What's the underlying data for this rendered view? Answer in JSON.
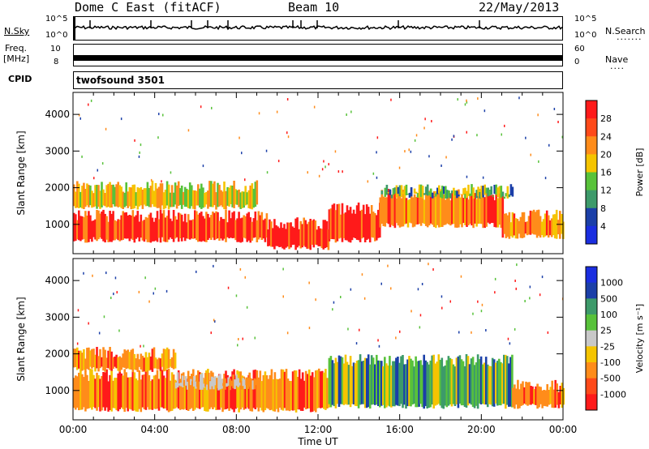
{
  "header": {
    "station": "Dome C East (fitACF)",
    "beam": "Beam 10",
    "date": "22/May/2013"
  },
  "strip_labels": {
    "nsky": "N.Sky",
    "nsky_hi": "10^5",
    "nsky_lo": "10^0",
    "nsearch": "N.Search",
    "nsearch_hi": "10^5",
    "nsearch_lo": "10^0",
    "freq_top": "Freq.",
    "freq_unit": "[MHz]",
    "freq_hi": "10",
    "freq_lo": "8",
    "nave": "Nave",
    "nave_hi": "60",
    "nave_lo": "0",
    "cpid": "CPID",
    "program": "twofsound 3501"
  },
  "colors": {
    "red": "#ff1a1a",
    "orange": "#ff8c1a",
    "yellow": "#f5c400",
    "green": "#58c23a",
    "teal": "#3d9a6a",
    "darkblue": "#1b3fa8",
    "blue": "#1a2ee0",
    "gray": "#c8c8c8"
  },
  "chart_data": [
    {
      "type": "heatmap",
      "panel": "power",
      "ylabel": "Slant Range [km]",
      "yticks": [
        "1000",
        "2000",
        "3000",
        "4000"
      ],
      "ylim": [
        200,
        4600
      ],
      "xlim": [
        0,
        24
      ],
      "colorbar_label": "Power [dB]",
      "colorbar": [
        {
          "label": "28",
          "color": "#ff1a1a"
        },
        {
          "label": "24",
          "color": "#ff4a1a"
        },
        {
          "label": "20",
          "color": "#ff8c1a"
        },
        {
          "label": "16",
          "color": "#f5c400"
        },
        {
          "label": "12",
          "color": "#58c23a"
        },
        {
          "label": "8",
          "color": "#3d9a6a"
        },
        {
          "label": "4",
          "color": "#1b3fa8"
        },
        {
          "label": "",
          "color": "#1a2ee0"
        }
      ],
      "echo_bands": [
        {
          "t0": 0.0,
          "t1": 9.5,
          "r0": 500,
          "r1": 1400,
          "level": "red"
        },
        {
          "t0": 9.5,
          "t1": 12.5,
          "r0": 300,
          "r1": 1200,
          "level": "red"
        },
        {
          "t0": 12.5,
          "t1": 15.0,
          "r0": 500,
          "r1": 1600,
          "level": "red"
        },
        {
          "t0": 15.0,
          "t1": 21.0,
          "r0": 900,
          "r1": 2000,
          "level": "orange"
        },
        {
          "t0": 21.0,
          "t1": 24.0,
          "r0": 600,
          "r1": 1400,
          "level": "orange"
        },
        {
          "t0": 0.0,
          "t1": 9.0,
          "r0": 1400,
          "r1": 2200,
          "level": "yellow"
        },
        {
          "t0": 15.0,
          "t1": 21.5,
          "r0": 1700,
          "r1": 2100,
          "level": "teal"
        }
      ]
    },
    {
      "type": "heatmap",
      "panel": "velocity",
      "ylabel": "Slant Range [km]",
      "yticks": [
        "1000",
        "2000",
        "3000",
        "4000"
      ],
      "ylim": [
        200,
        4600
      ],
      "xlim": [
        0,
        24
      ],
      "xlabel": "Time UT",
      "xticks": [
        "00:00",
        "04:00",
        "08:00",
        "12:00",
        "16:00",
        "20:00",
        "00:00"
      ],
      "colorbar_label": "Velocity [m s⁻¹]",
      "colorbar": [
        {
          "label": "1000",
          "color": "#1a2ee0"
        },
        {
          "label": "500",
          "color": "#1b3fa8"
        },
        {
          "label": "100",
          "color": "#3d9a6a"
        },
        {
          "label": "25",
          "color": "#58c23a"
        },
        {
          "label": "-25",
          "color": "#c8c8c8"
        },
        {
          "label": "-100",
          "color": "#f5c400"
        },
        {
          "label": "-500",
          "color": "#ff8c1a"
        },
        {
          "label": "-1000",
          "color": "#ff4a1a"
        },
        {
          "label": "",
          "color": "#ff1a1a"
        }
      ],
      "echo_bands": [
        {
          "t0": 0.0,
          "t1": 12.5,
          "r0": 400,
          "r1": 1600,
          "level": "orange"
        },
        {
          "t0": 5.0,
          "t1": 9.0,
          "r0": 1000,
          "r1": 1500,
          "level": "gray"
        },
        {
          "t0": 12.5,
          "t1": 21.5,
          "r0": 500,
          "r1": 2000,
          "level": "teal"
        },
        {
          "t0": 21.5,
          "t1": 24.0,
          "r0": 500,
          "r1": 1300,
          "level": "orange"
        },
        {
          "t0": 0.0,
          "t1": 5.0,
          "r0": 1500,
          "r1": 2200,
          "level": "orange"
        }
      ]
    }
  ]
}
